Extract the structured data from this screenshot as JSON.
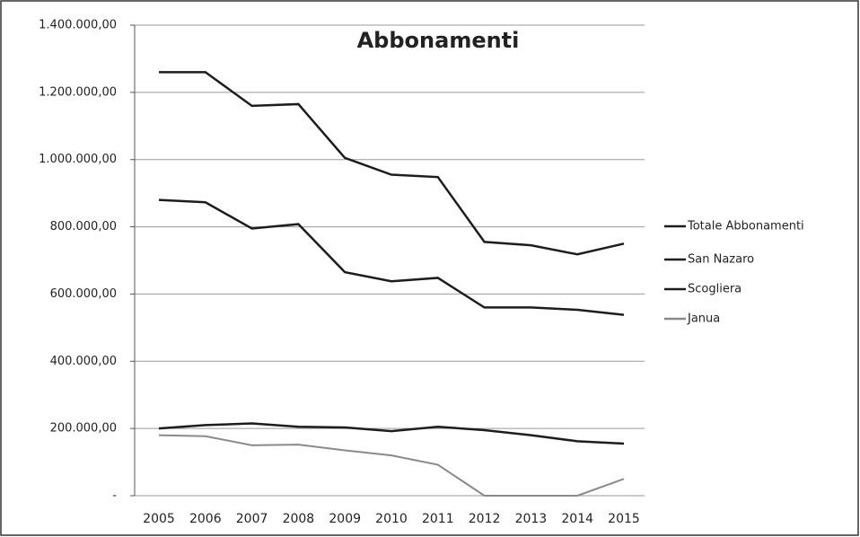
{
  "chart_data": {
    "type": "line",
    "title": "Abbonamenti",
    "categories": [
      "2005",
      "2006",
      "2007",
      "2008",
      "2009",
      "2010",
      "2011",
      "2012",
      "2013",
      "2014",
      "2015"
    ],
    "series": [
      {
        "name": "Totale Abbonamenti",
        "color": "#1c1c22",
        "values": [
          1260000,
          1260000,
          1160000,
          1165000,
          1005000,
          955000,
          948000,
          755000,
          745000,
          718000,
          750000
        ]
      },
      {
        "name": "San Nazaro",
        "color": "#1c1c22",
        "values": [
          880000,
          873000,
          795000,
          808000,
          665000,
          638000,
          648000,
          560000,
          560000,
          553000,
          538000
        ]
      },
      {
        "name": "Scogliera",
        "color": "#1c1c22",
        "values": [
          200000,
          210000,
          215000,
          205000,
          203000,
          192000,
          205000,
          195000,
          180000,
          162000,
          155000
        ]
      },
      {
        "name": "Janua",
        "color": "#8a8a8a",
        "values": [
          180000,
          177000,
          150000,
          152000,
          135000,
          120000,
          92000,
          0,
          0,
          0,
          50000
        ]
      }
    ],
    "ylim": [
      0,
      1400000
    ],
    "yticks": [
      {
        "value": 0,
        "label": "-"
      },
      {
        "value": 200000,
        "label": "200.000,00"
      },
      {
        "value": 400000,
        "label": "400.000,00"
      },
      {
        "value": 600000,
        "label": "600.000,00"
      },
      {
        "value": 800000,
        "label": "800.000,00"
      },
      {
        "value": 1000000,
        "label": "1.000.000,00"
      },
      {
        "value": 1200000,
        "label": "1.200.000,00"
      },
      {
        "value": 1400000,
        "label": "1.400.000,00"
      }
    ],
    "grid": true,
    "legend": "right"
  }
}
